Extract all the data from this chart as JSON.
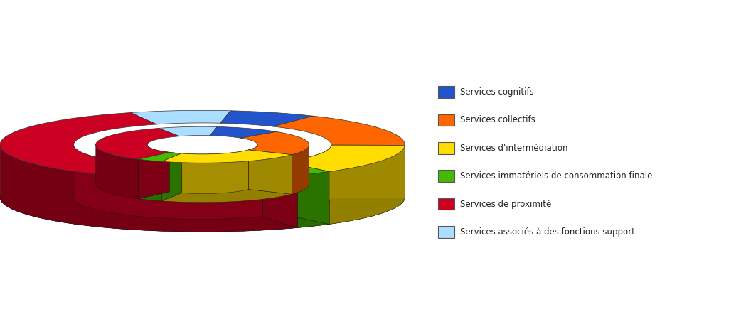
{
  "categories": [
    "Services cognitifs",
    "Services collectifs",
    "Services d'intermédiation",
    "Services immatériels de consommation finale",
    "Services de proximité",
    "Services associés à des fonctions support"
  ],
  "colors": [
    "#2255cc",
    "#ff6600",
    "#ffdd00",
    "#44bb00",
    "#cc0022",
    "#aaddff"
  ],
  "inner_values": [
    10,
    22,
    22,
    4,
    33,
    9
  ],
  "outer_values": [
    7,
    16,
    14,
    3,
    52,
    8
  ],
  "legend_labels": [
    "Services cognitifs",
    "Services collectifs",
    "Services d'intermédiation",
    "Services immatériels de consommation finale",
    "Services de proximité",
    "Services associés à des fonctions support"
  ],
  "legend_colors": [
    "#2255cc",
    "#ff6600",
    "#ffdd00",
    "#44bb00",
    "#cc0022",
    "#aaddff"
  ],
  "figsize": [
    10.35,
    4.63
  ],
  "dpi": 100
}
